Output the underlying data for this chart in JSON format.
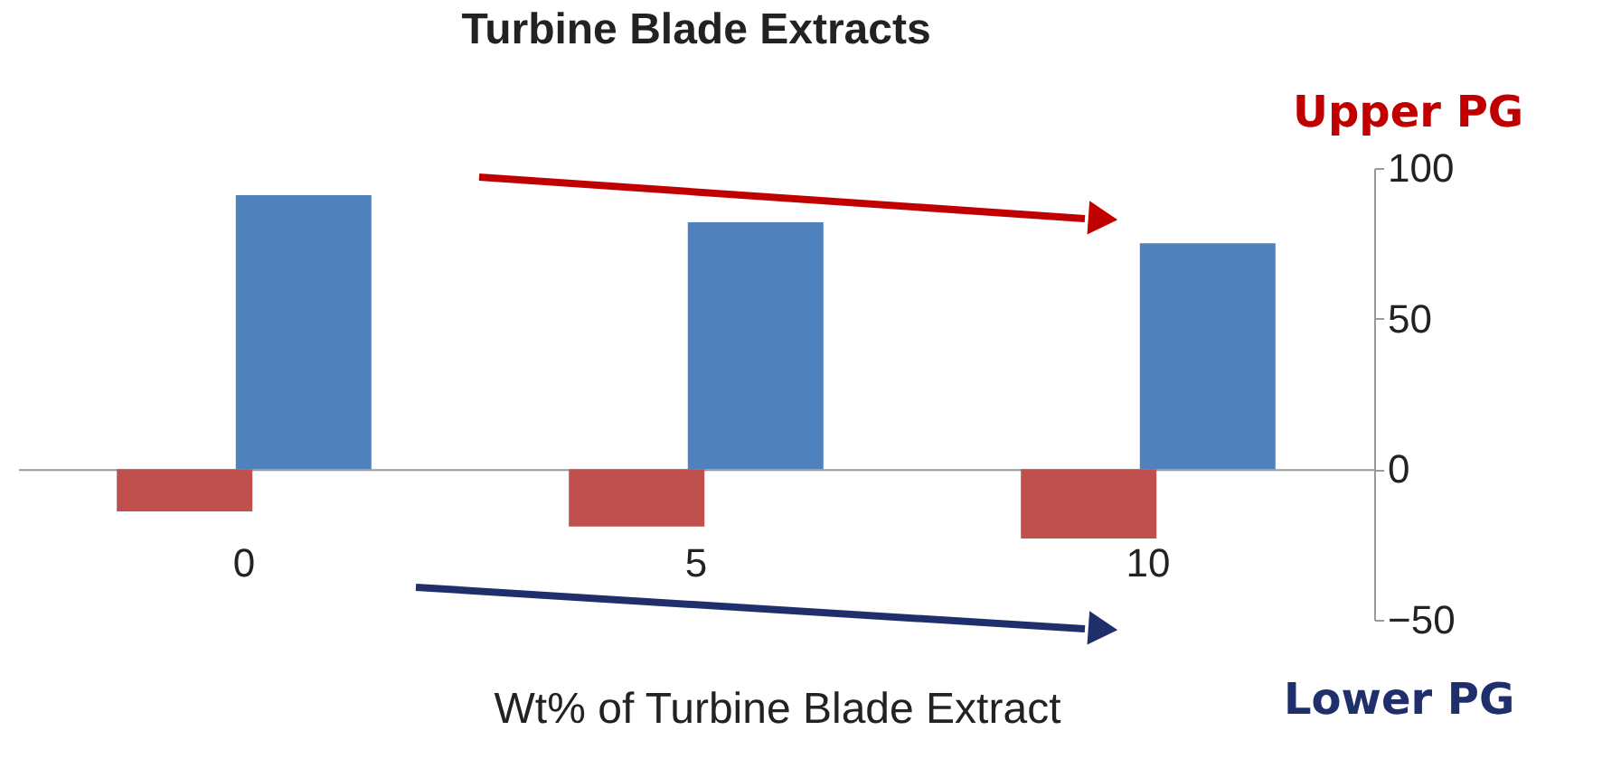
{
  "chart_data": {
    "type": "bar",
    "title": "Turbine Blade Extracts",
    "xlabel": "Wt% of Turbine Blade Extract",
    "categories": [
      "0",
      "5",
      "10"
    ],
    "series": [
      {
        "color": "#c0504d",
        "values": [
          -14,
          -19,
          -23
        ]
      },
      {
        "color": "#4f81bd",
        "values": [
          91,
          82,
          75
        ]
      }
    ],
    "ylim": [
      -50,
      100
    ],
    "yticks": [
      -50,
      0,
      50,
      100
    ],
    "grid": false,
    "legend": false,
    "annotations": [
      "Upper PG",
      "Lower PG"
    ]
  }
}
